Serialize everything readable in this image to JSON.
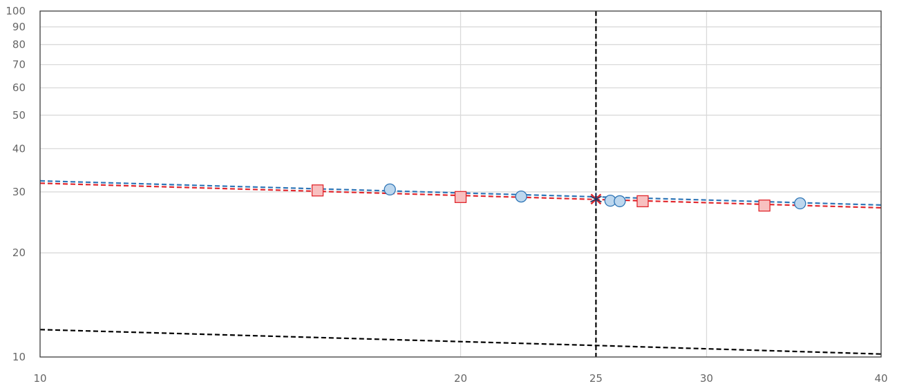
{
  "chart_data": {
    "type": "scatter",
    "x_scale": "log",
    "y_scale": "log",
    "xlim": [
      10,
      40
    ],
    "ylim": [
      10,
      100
    ],
    "x_ticks": [
      10,
      20,
      25,
      30,
      40
    ],
    "x_tick_labels": [
      "10",
      "20",
      "25",
      "30",
      "40"
    ],
    "y_ticks": [
      10,
      20,
      30,
      40,
      50,
      60,
      70,
      80,
      90,
      100
    ],
    "y_tick_labels": [
      "10",
      "20",
      "30",
      "40",
      "50",
      "60",
      "70",
      "80",
      "90",
      "100"
    ],
    "grid": true,
    "title": "",
    "xlabel": "",
    "ylabel": "",
    "series": [
      {
        "marker": "circle",
        "color": "#bdd7ee",
        "edge_color": "#2e75b6",
        "points": [
          [
            17.8,
            30.5
          ],
          [
            22.1,
            29.1
          ],
          [
            25.6,
            28.3
          ],
          [
            26.0,
            28.2
          ],
          [
            35.0,
            27.8
          ]
        ]
      },
      {
        "marker": "square",
        "color": "#f8c0c0",
        "edge_color": "#e0262c",
        "points": [
          [
            15.8,
            30.3
          ],
          [
            20.0,
            29.0
          ],
          [
            27.0,
            28.2
          ],
          [
            33.0,
            27.4
          ]
        ]
      }
    ],
    "trendlines": [
      {
        "color": "#2e75b6",
        "style": "dashed",
        "points": [
          [
            10,
            32.3
          ],
          [
            40,
            27.5
          ]
        ]
      },
      {
        "color": "#e0262c",
        "style": "dashed",
        "points": [
          [
            10,
            31.8
          ],
          [
            40,
            27.0
          ]
        ]
      },
      {
        "color": "#000000",
        "style": "dashed",
        "points": [
          [
            10,
            12.0
          ],
          [
            25,
            10.8
          ],
          [
            40,
            10.2
          ]
        ]
      }
    ],
    "reference_lines": [
      {
        "axis": "x",
        "value": 25,
        "color": "#000000",
        "style": "dashed"
      }
    ],
    "highlight_points": [
      {
        "x": 25,
        "y": 28.6,
        "marker": "asterisk",
        "colors": [
          "#e0262c",
          "#1f3864"
        ]
      }
    ]
  }
}
